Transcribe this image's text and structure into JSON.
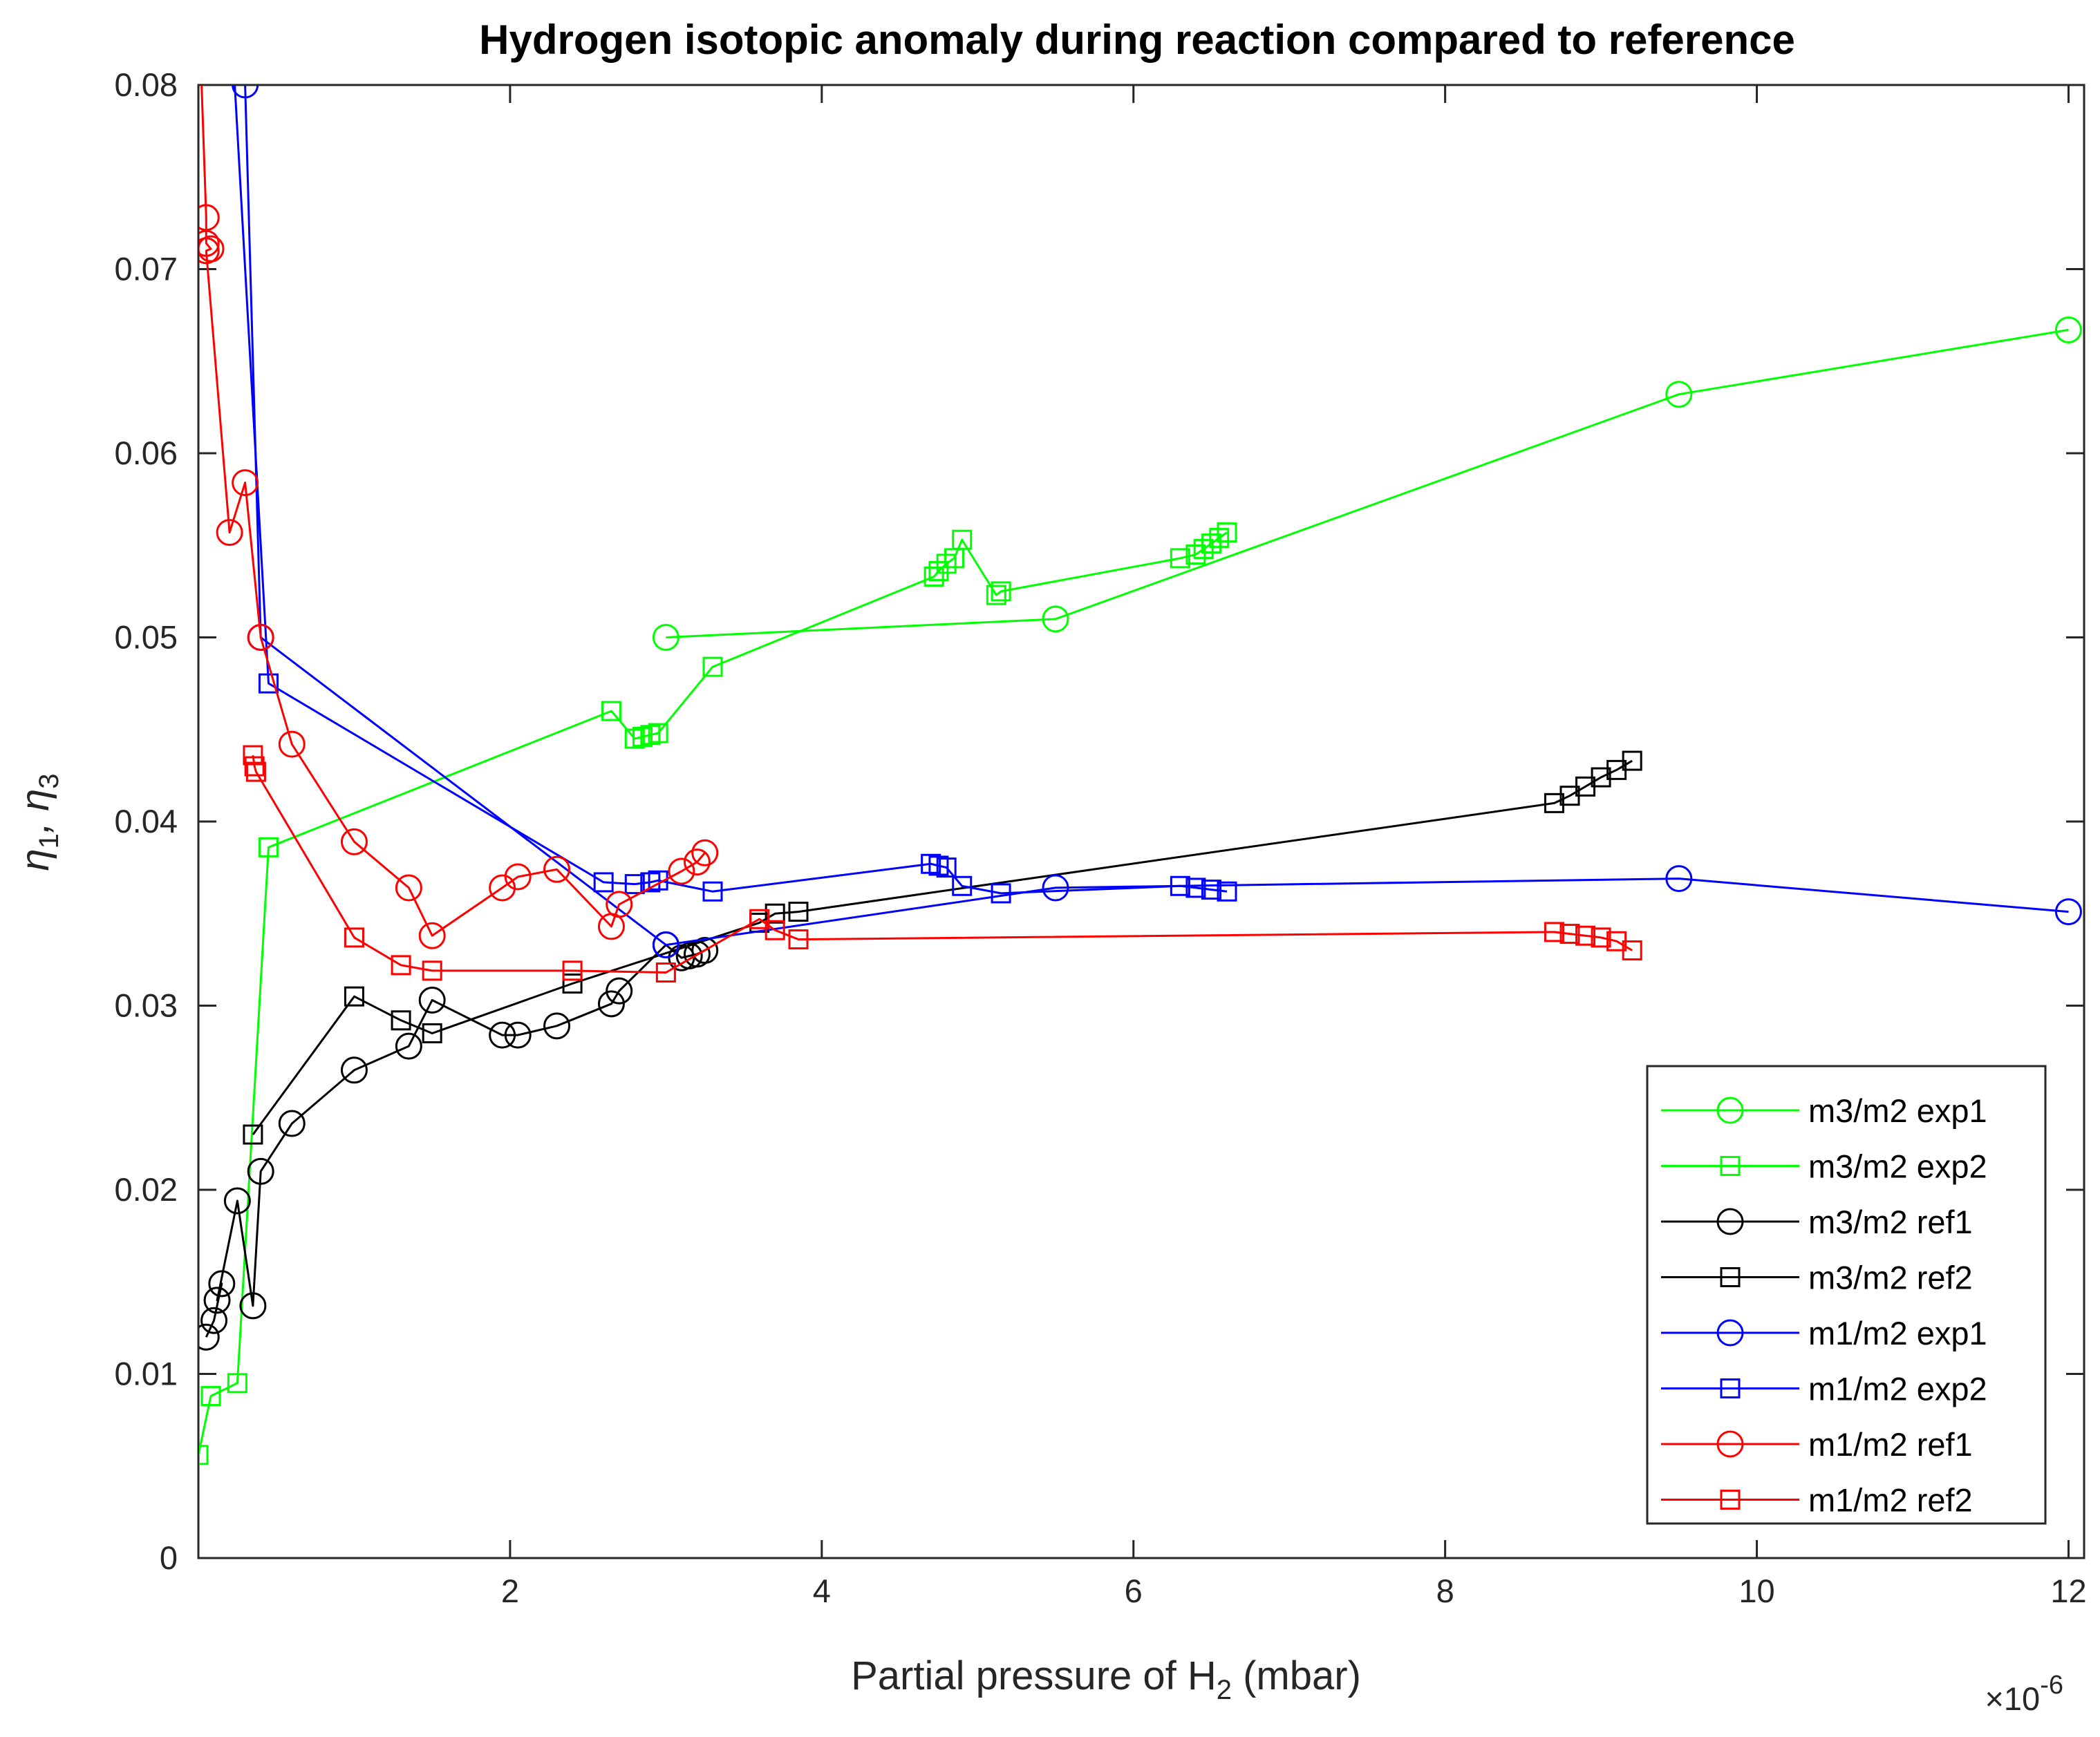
{
  "chart_data": {
    "type": "line",
    "title": "Hydrogen isotopic anomaly during reaction compared to reference",
    "xlabel_parts": [
      "Partial pressure of H",
      "2",
      " (mbar)"
    ],
    "ylabel_parts": [
      "η",
      "1",
      ", η",
      "3"
    ],
    "x_exponent_label": [
      "×10",
      "-6"
    ],
    "xlim": [
      0.0,
      12.1
    ],
    "ylim": [
      0.0,
      0.08
    ],
    "x_scale_exponent": -6,
    "x_ticks": [
      2,
      4,
      6,
      8,
      10,
      12
    ],
    "y_ticks": [
      0,
      0.01,
      0.02,
      0.03,
      0.04,
      0.05,
      0.06,
      0.07,
      0.08
    ],
    "y_tick_labels": [
      "0",
      "0.01",
      "0.02",
      "0.03",
      "0.04",
      "0.05",
      "0.06",
      "0.07",
      "0.08"
    ],
    "grid": false,
    "legend_position": "bottom-right",
    "series": [
      {
        "name": "m3/m2 exp1",
        "color": "#00ff00",
        "marker": "circle",
        "x": [
          3.0,
          5.5,
          9.5,
          12.0
        ],
        "y": [
          0.05,
          0.051,
          0.0632,
          0.0667
        ]
      },
      {
        "name": "m3/m2 exp2",
        "color": "#00ff00",
        "marker": "square",
        "x": [
          0.0,
          0.08,
          0.25,
          0.45,
          2.65,
          2.8,
          2.85,
          2.9,
          2.95,
          3.3,
          4.72,
          4.75,
          4.8,
          4.85,
          4.9,
          5.12,
          5.15,
          6.3,
          6.4,
          6.45,
          6.5,
          6.55,
          6.6
        ],
        "y": [
          0.0056,
          0.0088,
          0.0095,
          0.0386,
          0.046,
          0.0445,
          0.0446,
          0.0447,
          0.0448,
          0.0484,
          0.0533,
          0.0536,
          0.054,
          0.0543,
          0.0553,
          0.0523,
          0.0525,
          0.0543,
          0.0545,
          0.0548,
          0.0551,
          0.0554,
          0.0557
        ]
      },
      {
        "name": "m3/m2 ref1",
        "color": "#000000",
        "marker": "circle",
        "x": [
          0.05,
          0.1,
          0.15,
          0.12,
          0.25,
          0.35,
          0.4,
          0.6,
          1.0,
          1.35,
          1.5,
          1.95,
          2.05,
          2.3,
          2.65,
          2.7,
          3.0,
          3.1,
          3.15,
          3.2,
          3.25
        ],
        "y": [
          0.012,
          0.0129,
          0.0149,
          0.014,
          0.0194,
          0.0137,
          0.021,
          0.0236,
          0.0265,
          0.0278,
          0.0303,
          0.0284,
          0.0284,
          0.0289,
          0.0301,
          0.0308,
          0.0333,
          0.0326,
          0.0327,
          0.0328,
          0.033
        ]
      },
      {
        "name": "m3/m2 ref2",
        "color": "#000000",
        "marker": "square",
        "x": [
          0.35,
          1.0,
          1.3,
          1.5,
          2.4,
          3.6,
          3.7,
          3.85,
          8.7,
          8.8,
          8.9,
          9.0,
          9.1,
          9.2
        ],
        "y": [
          0.023,
          0.0305,
          0.0292,
          0.0285,
          0.0312,
          0.0345,
          0.035,
          0.0351,
          0.041,
          0.0414,
          0.0419,
          0.0424,
          0.0428,
          0.0433
        ]
      },
      {
        "name": "m1/m2 exp1",
        "color": "#0000ff",
        "marker": "circle",
        "x": [
          0.3,
          0.4,
          3.0,
          5.5,
          9.5,
          12.0
        ],
        "y": [
          0.08,
          0.05,
          0.0333,
          0.0364,
          0.0369,
          0.0351
        ]
      },
      {
        "name": "m1/m2 exp2",
        "color": "#0000ff",
        "marker": "square",
        "x": [
          0.2,
          0.45,
          2.6,
          2.8,
          2.9,
          2.95,
          3.3,
          4.7,
          4.75,
          4.8,
          4.9,
          5.15,
          6.3,
          6.4,
          6.5,
          6.6
        ],
        "y": [
          0.085,
          0.0475,
          0.0367,
          0.0366,
          0.0367,
          0.0368,
          0.0362,
          0.0377,
          0.0376,
          0.0375,
          0.0365,
          0.0361,
          0.0365,
          0.0364,
          0.0363,
          0.0362
        ]
      },
      {
        "name": "m1/m2 ref1",
        "color": "#ff0000",
        "marker": "circle",
        "x": [
          0.0,
          0.05,
          0.05,
          0.08,
          0.05,
          0.2,
          0.3,
          0.4,
          0.6,
          1.0,
          1.35,
          1.5,
          1.95,
          2.05,
          2.3,
          2.65,
          2.7,
          3.1,
          3.2,
          3.25
        ],
        "y": [
          0.085,
          0.0728,
          0.0714,
          0.0711,
          0.071,
          0.0557,
          0.0584,
          0.05,
          0.0442,
          0.0389,
          0.0364,
          0.0338,
          0.0364,
          0.037,
          0.0374,
          0.0343,
          0.0355,
          0.0373,
          0.0378,
          0.0383
        ]
      },
      {
        "name": "m1/m2 ref2",
        "color": "#ff0000",
        "marker": "square",
        "x": [
          0.35,
          0.36,
          0.37,
          1.0,
          1.3,
          1.5,
          2.4,
          3.0,
          3.6,
          3.7,
          3.85,
          8.7,
          8.8,
          8.9,
          9.0,
          9.1,
          9.2
        ],
        "y": [
          0.0436,
          0.043,
          0.0427,
          0.0337,
          0.0322,
          0.0319,
          0.0319,
          0.0318,
          0.0347,
          0.0341,
          0.0336,
          0.034,
          0.0339,
          0.0338,
          0.0337,
          0.0335,
          0.033
        ]
      }
    ]
  }
}
